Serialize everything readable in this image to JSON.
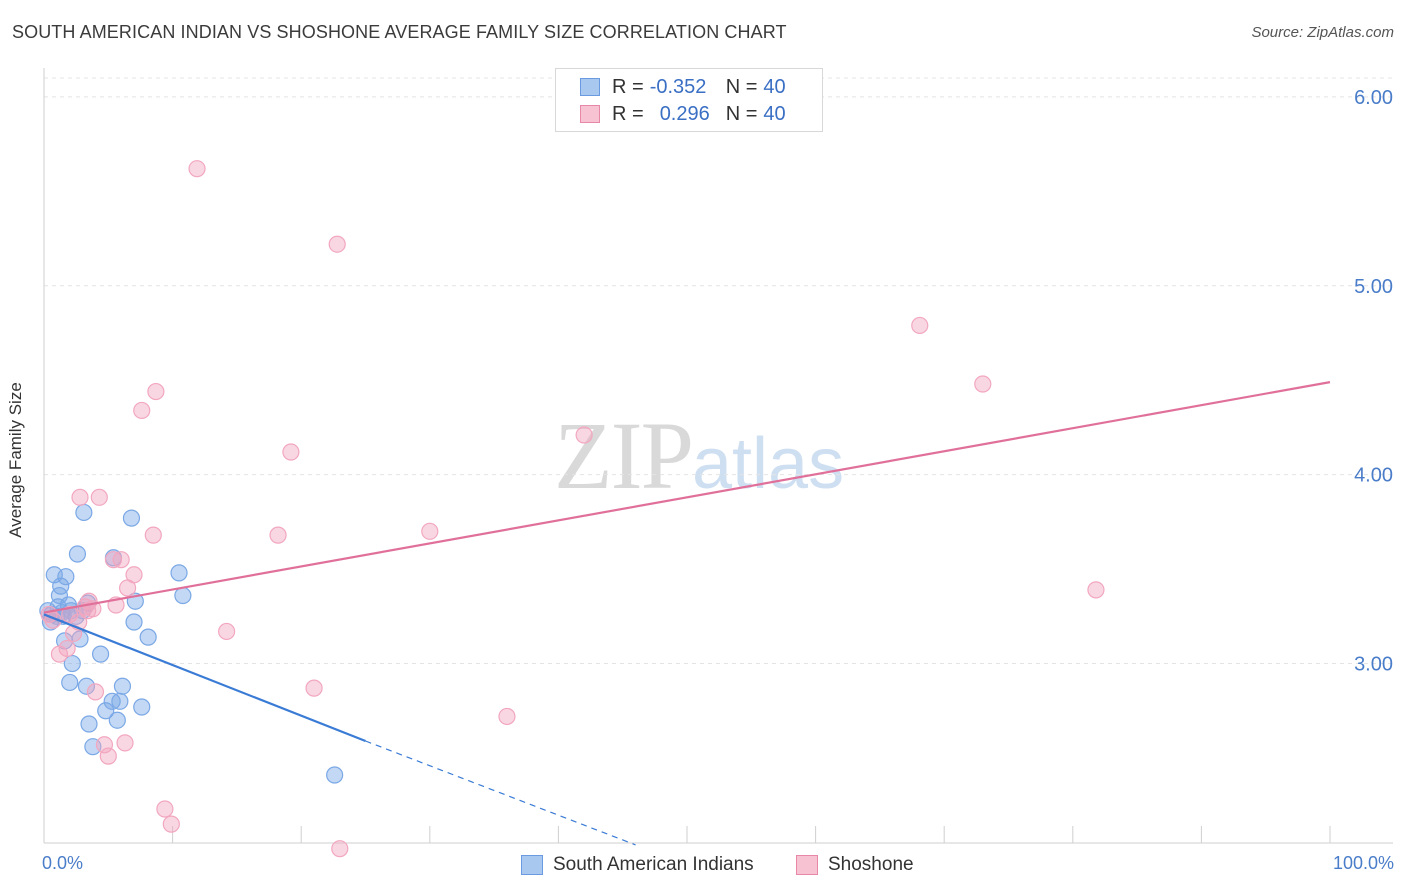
{
  "title": "SOUTH AMERICAN INDIAN VS SHOSHONE AVERAGE FAMILY SIZE CORRELATION CHART",
  "source": "Source: ZipAtlas.com",
  "watermark": {
    "zip": "ZIP",
    "atlas": "atlas"
  },
  "legend": {
    "rows": [
      {
        "r_label": "R =",
        "r_value": "-0.352",
        "n_label": "N =",
        "n_value": "40",
        "color": "#a9c8ef",
        "border": "#6a9be0"
      },
      {
        "r_label": "R =",
        "r_value": "0.296",
        "n_label": "N =",
        "n_value": "40",
        "color": "#f7c2d2",
        "border": "#e888a8"
      }
    ]
  },
  "bottom_legend": [
    {
      "label": "South American Indians",
      "color": "#a9c8ef",
      "border": "#6a9be0"
    },
    {
      "label": "Shoshone",
      "color": "#f7c2d2",
      "border": "#e888a8"
    }
  ],
  "chart_data": {
    "type": "scatter",
    "title": "SOUTH AMERICAN INDIAN VS SHOSHONE AVERAGE FAMILY SIZE CORRELATION CHART",
    "xlabel": "",
    "ylabel": "Average Family Size",
    "xlim": [
      0,
      100
    ],
    "ylim": [
      2.05,
      6.1
    ],
    "x_tick_labels": [
      "0.0%",
      "100.0%"
    ],
    "y_ticks": [
      3.0,
      4.0,
      5.0,
      6.0
    ],
    "y_tick_labels": [
      "3.00",
      "4.00",
      "5.00",
      "6.00"
    ],
    "grid": true,
    "series": [
      {
        "name": "South American Indians",
        "color": "#7aa8e6",
        "line_color": "#3a7bd5",
        "points": [
          [
            0.3,
            3.28
          ],
          [
            0.5,
            3.22
          ],
          [
            0.6,
            3.26
          ],
          [
            0.8,
            3.47
          ],
          [
            1.0,
            3.25
          ],
          [
            1.1,
            3.3
          ],
          [
            1.2,
            3.36
          ],
          [
            1.3,
            3.41
          ],
          [
            1.4,
            3.27
          ],
          [
            1.5,
            3.25
          ],
          [
            1.6,
            3.12
          ],
          [
            1.7,
            3.46
          ],
          [
            1.9,
            3.31
          ],
          [
            2.0,
            2.9
          ],
          [
            2.1,
            3.28
          ],
          [
            2.2,
            3.0
          ],
          [
            2.5,
            3.25
          ],
          [
            2.6,
            3.58
          ],
          [
            2.8,
            3.13
          ],
          [
            3.0,
            3.28
          ],
          [
            3.1,
            3.8
          ],
          [
            3.3,
            2.88
          ],
          [
            3.4,
            3.32
          ],
          [
            3.5,
            2.68
          ],
          [
            3.8,
            2.56
          ],
          [
            4.4,
            3.05
          ],
          [
            4.8,
            2.75
          ],
          [
            5.3,
            2.8
          ],
          [
            5.4,
            3.56
          ],
          [
            5.7,
            2.7
          ],
          [
            5.9,
            2.8
          ],
          [
            6.1,
            2.88
          ],
          [
            6.8,
            3.77
          ],
          [
            7.1,
            3.33
          ],
          [
            7.0,
            3.22
          ],
          [
            7.6,
            2.77
          ],
          [
            8.1,
            3.14
          ],
          [
            10.5,
            3.48
          ],
          [
            10.8,
            3.36
          ],
          [
            22.6,
            2.41
          ]
        ],
        "trend": {
          "x": [
            0,
            25.0
          ],
          "y": [
            3.26,
            2.59
          ]
        },
        "trend_dashed": {
          "x": [
            25.0,
            46.0
          ],
          "y": [
            2.59,
            2.04
          ]
        }
      },
      {
        "name": "Shoshone",
        "color": "#f2a7bf",
        "line_color": "#e0709a",
        "points": [
          [
            0.4,
            3.26
          ],
          [
            0.7,
            3.23
          ],
          [
            1.2,
            3.05
          ],
          [
            1.8,
            3.08
          ],
          [
            2.0,
            3.26
          ],
          [
            2.3,
            3.16
          ],
          [
            2.7,
            3.22
          ],
          [
            2.8,
            3.88
          ],
          [
            3.2,
            3.3
          ],
          [
            3.4,
            3.28
          ],
          [
            3.5,
            3.33
          ],
          [
            3.8,
            3.29
          ],
          [
            4.0,
            2.85
          ],
          [
            4.3,
            3.88
          ],
          [
            4.7,
            2.57
          ],
          [
            5.0,
            2.51
          ],
          [
            5.4,
            3.55
          ],
          [
            5.6,
            3.31
          ],
          [
            6.0,
            3.55
          ],
          [
            6.3,
            2.58
          ],
          [
            6.5,
            3.4
          ],
          [
            7.0,
            3.47
          ],
          [
            7.6,
            4.34
          ],
          [
            8.5,
            3.68
          ],
          [
            8.7,
            4.44
          ],
          [
            9.4,
            2.23
          ],
          [
            9.9,
            2.15
          ],
          [
            11.9,
            5.62
          ],
          [
            14.2,
            3.17
          ],
          [
            18.2,
            3.68
          ],
          [
            19.2,
            4.12
          ],
          [
            21.0,
            2.87
          ],
          [
            22.8,
            5.22
          ],
          [
            23.0,
            2.02
          ],
          [
            30.0,
            3.7
          ],
          [
            36.0,
            2.72
          ],
          [
            42.0,
            4.21
          ],
          [
            68.1,
            4.79
          ],
          [
            73.0,
            4.48
          ],
          [
            81.8,
            3.39
          ]
        ],
        "trend": {
          "x": [
            0,
            100
          ],
          "y": [
            3.27,
            4.49
          ]
        }
      }
    ]
  }
}
